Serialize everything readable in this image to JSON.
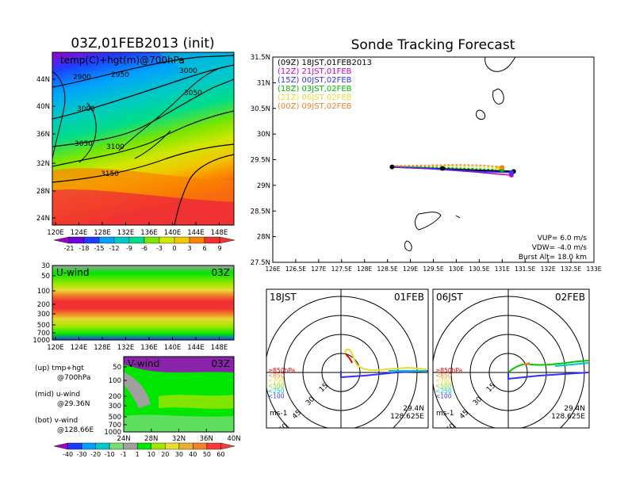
{
  "left_map": {
    "title": "03Z,01FEB2013 (init)",
    "overlay_label": "temp(C)+hgt(m)@700hPa",
    "lat_ticks": [
      "44N",
      "40N",
      "36N",
      "32N",
      "28N",
      "24N"
    ],
    "lon_ticks": [
      "120E",
      "124E",
      "128E",
      "132E",
      "136E",
      "140E",
      "144E",
      "148E"
    ],
    "contour_labels": [
      "2900",
      "2950",
      "3000",
      "3050",
      "3000",
      "3050",
      "3100",
      "3150"
    ],
    "colorbar_values": [
      "-21",
      "-18",
      "-15",
      "-12",
      "-9",
      "-6",
      "-3",
      "0",
      "3",
      "6",
      "9"
    ],
    "colorbar_colors": [
      "#a000c8",
      "#6e00dc",
      "#1e3cff",
      "#00a0ff",
      "#00c8c8",
      "#00dc8c",
      "#78e600",
      "#d2e600",
      "#f0c800",
      "#fa8200",
      "#f03232"
    ]
  },
  "uwind": {
    "title": "U-wind",
    "time": "03Z",
    "p_ticks": [
      "30",
      "50",
      "100",
      "200",
      "300",
      "500",
      "700",
      "1000"
    ],
    "lon_ticks": [
      "120E",
      "124E",
      "128E",
      "132E",
      "136E",
      "140E",
      "144E",
      "148E"
    ]
  },
  "vwind": {
    "title": "V-wind",
    "time": "03Z",
    "p_ticks": [
      "50",
      "100",
      "200",
      "300",
      "500",
      "700",
      "1000"
    ],
    "lat_ticks": [
      "24N",
      "28N",
      "32N",
      "36N",
      "40N"
    ],
    "colorbar_values": [
      "-40",
      "-30",
      "-20",
      "-10",
      "-1",
      "1",
      "10",
      "20",
      "30",
      "40",
      "50",
      "60"
    ],
    "colorbar_colors": [
      "#a000c8",
      "#1e3cff",
      "#00a0ff",
      "#00c8c8",
      "#78dc78",
      "#a0a0a0",
      "#00e600",
      "#a0e600",
      "#e6dc32",
      "#e6af2d",
      "#f08228",
      "#fa3c3c"
    ]
  },
  "legend_text": {
    "up": "(up) tmp+hgt",
    "up2": "@700hPa",
    "mid": "(mid) u-wind",
    "mid2": "@29.36N",
    "bot": "(bot) v-wind",
    "bot2": "@128.66E"
  },
  "right": {
    "title": "Sonde Tracking Forecast",
    "lat_ticks": [
      "31.5N",
      "31N",
      "30.5N",
      "30N",
      "29.5N",
      "29N",
      "28.5N",
      "28N",
      "27.5N"
    ],
    "lon_ticks": [
      "126E",
      "126.5E",
      "127E",
      "127.5E",
      "128E",
      "128.5E",
      "129E",
      "129.5E",
      "130E",
      "130.5E",
      "131E",
      "131.5E",
      "132E",
      "132.5E",
      "133E"
    ],
    "runs": [
      {
        "label": "(09Z)  18JST,01FEB2013",
        "color": "#000000"
      },
      {
        "label": "(12Z)  21JST,01FEB",
        "color": "#c800c8"
      },
      {
        "label": "(15Z)  00JST,02FEB",
        "color": "#3232ff"
      },
      {
        "label": "(18Z)  03JST,02FEB",
        "color": "#00b400"
      },
      {
        "label": "(21Z)  06JST,02FEB",
        "color": "#e6dc32"
      },
      {
        "label": "(00Z)  09JST,02FEB",
        "color": "#f08228"
      }
    ],
    "vup": "VUP=  6.0  m/s",
    "vdw": "VDW=  -4.0  m/s",
    "burst": "Burst Alt=  18.0  km"
  },
  "hodo_left": {
    "time": "18JST",
    "date": "01FEB",
    "lat": "29.4N",
    "lon": "128.625E",
    "units": "ms-1",
    "rings": [
      "15",
      "30",
      "45",
      "60"
    ]
  },
  "hodo_right": {
    "time": "06JST",
    "date": "02FEB",
    "lat": "29.4N",
    "lon": "128.625E",
    "units": "ms-1",
    "rings": [
      "15",
      "30",
      "45",
      "60"
    ]
  },
  "hodo_legend": [
    {
      "label": "≥850hPa",
      "color": "#e60000"
    },
    {
      "label": "<850",
      "color": "#f08228"
    },
    {
      "label": "<700",
      "color": "#e6dc32"
    },
    {
      "label": "<500",
      "color": "#78dc00"
    },
    {
      "label": "<250",
      "color": "#00c8c8"
    },
    {
      "label": "<100",
      "color": "#3232ff"
    }
  ],
  "chart_data": [
    {
      "type": "heatmap",
      "title": "03Z,01FEB2013 (init)",
      "subtitle": "temp(C)+hgt(m)@700hPa",
      "xlim": [
        "120E",
        "150E"
      ],
      "ylim": [
        "22N",
        "47N"
      ],
      "color_levels": [
        -21,
        -18,
        -15,
        -12,
        -9,
        -6,
        -3,
        0,
        3,
        6,
        9
      ],
      "contour_levels": [
        2900,
        2950,
        3000,
        3050,
        3100,
        3150
      ]
    },
    {
      "type": "heatmap",
      "title": "U-wind",
      "x_ticks": [
        "120E",
        "124E",
        "128E",
        "132E",
        "136E",
        "140E",
        "144E",
        "148E"
      ],
      "y_ticks_hPa": [
        30,
        50,
        100,
        200,
        300,
        500,
        700,
        1000
      ]
    },
    {
      "type": "heatmap",
      "title": "V-wind",
      "x_ticks": [
        "24N",
        "28N",
        "32N",
        "36N",
        "40N"
      ],
      "y_ticks_hPa": [
        50,
        100,
        200,
        300,
        500,
        700,
        1000
      ],
      "color_levels": [
        -40,
        -30,
        -20,
        -10,
        -1,
        1,
        10,
        20,
        30,
        40,
        50,
        60
      ]
    },
    {
      "type": "line",
      "title": "Sonde Tracking Forecast",
      "xlim": [
        126,
        133
      ],
      "ylim": [
        27.5,
        31.5
      ],
      "series": [
        {
          "name": "(09Z) 18JST,01FEB2013",
          "points": [
            [
              128.6,
              29.36
            ],
            [
              129.2,
              29.34
            ],
            [
              129.7,
              29.32
            ],
            [
              130.2,
              29.3
            ],
            [
              130.8,
              29.28
            ],
            [
              131.25,
              29.27
            ]
          ]
        },
        {
          "name": "(12Z) 21JST,01FEB",
          "points": [
            [
              128.6,
              29.36
            ],
            [
              129.3,
              29.33
            ],
            [
              129.8,
              29.3
            ],
            [
              130.4,
              29.26
            ],
            [
              130.9,
              29.22
            ],
            [
              131.2,
              29.2
            ]
          ]
        },
        {
          "name": "(15Z) 00JST,02FEB",
          "points": [
            [
              128.6,
              29.37
            ],
            [
              129.3,
              29.34
            ],
            [
              129.9,
              29.3
            ],
            [
              130.5,
              29.27
            ],
            [
              131.2,
              29.25
            ]
          ]
        },
        {
          "name": "(18Z) 03JST,02FEB",
          "points": [
            [
              128.6,
              29.37
            ],
            [
              129.3,
              29.36
            ],
            [
              129.9,
              29.34
            ],
            [
              130.5,
              29.32
            ],
            [
              131.0,
              29.3
            ]
          ]
        },
        {
          "name": "(21Z) 06JST,02FEB",
          "points": [
            [
              128.6,
              29.38
            ],
            [
              129.3,
              29.38
            ],
            [
              130.0,
              29.37
            ],
            [
              130.6,
              29.36
            ],
            [
              130.9,
              29.34
            ]
          ]
        },
        {
          "name": "(00Z) 09JST,02FEB",
          "points": [
            [
              128.6,
              29.38
            ],
            [
              129.3,
              29.39
            ],
            [
              130.0,
              29.4
            ],
            [
              130.6,
              29.39
            ],
            [
              131.0,
              29.35
            ]
          ]
        }
      ]
    }
  ]
}
